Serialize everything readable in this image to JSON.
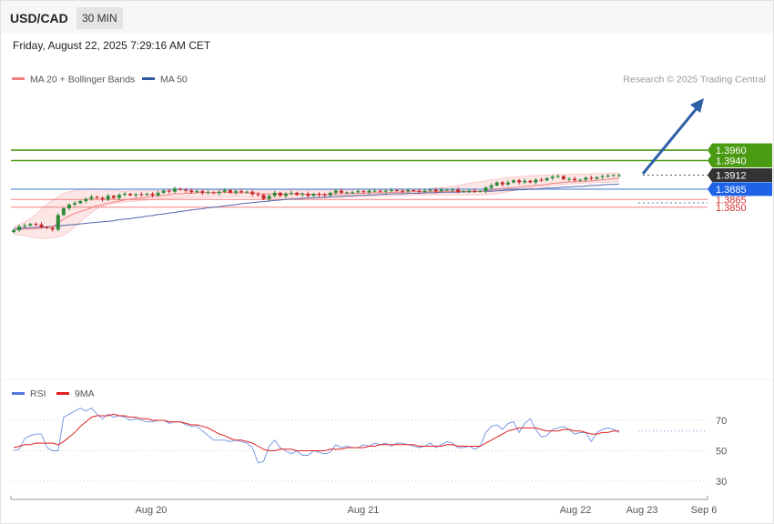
{
  "header": {
    "symbol": "USD/CAD",
    "timeframe": "30 MIN",
    "datetime": "Friday, August 22, 2025 7:29:16 AM CET"
  },
  "legend": {
    "ma20": "MA 20 + Bollinger Bands",
    "ma50": "MA 50",
    "credit": "Research © 2025 Trading Central"
  },
  "rsi_legend": {
    "rsi": "RSI",
    "ma": "9MA"
  },
  "colors": {
    "up": "#2e8b3a",
    "down": "#c62828",
    "ma20": "#f08080",
    "ma50": "#5566aa",
    "band": "#fde6e6",
    "target": "#4a9a12",
    "pivot": "#1f62e8",
    "support": "#f08080",
    "current": "#333333",
    "arrow": "#2f5fa6",
    "rsi": "#6f8fe0",
    "rsi_ma": "#e02020"
  },
  "chart_data": [
    {
      "type": "candlestick",
      "title": "USD/CAD 30 MIN",
      "x_ticks": [
        "Aug 20",
        "Aug 21",
        "Aug 22",
        "Aug 23",
        "Sep 6"
      ],
      "ylim": [
        1.38,
        1.398
      ],
      "levels": [
        {
          "value": 1.396,
          "label": "1.3960",
          "kind": "target"
        },
        {
          "value": 1.394,
          "label": "1.3940",
          "kind": "target"
        },
        {
          "value": 1.3912,
          "label": "1.3912",
          "kind": "current"
        },
        {
          "value": 1.3885,
          "label": "1.3885",
          "kind": "pivot"
        },
        {
          "value": 1.3865,
          "label": "1.3865",
          "kind": "support"
        },
        {
          "value": 1.385,
          "label": "1.3850",
          "kind": "support"
        }
      ],
      "close": [
        1.3806,
        1.3813,
        1.3815,
        1.3818,
        1.3817,
        1.3812,
        1.381,
        1.3807,
        1.3835,
        1.3848,
        1.3855,
        1.3858,
        1.3862,
        1.3866,
        1.387,
        1.3868,
        1.3865,
        1.3872,
        1.3868,
        1.3874,
        1.3876,
        1.3873,
        1.3875,
        1.3874,
        1.3876,
        1.3873,
        1.3878,
        1.3882,
        1.388,
        1.3886,
        1.3884,
        1.3882,
        1.3879,
        1.3881,
        1.3878,
        1.3879,
        1.3877,
        1.388,
        1.3883,
        1.3878,
        1.3881,
        1.3879,
        1.388,
        1.3875,
        1.3874,
        1.3866,
        1.3872,
        1.3878,
        1.3872,
        1.3876,
        1.3878,
        1.3874,
        1.3876,
        1.3872,
        1.3876,
        1.3874,
        1.3873,
        1.3878,
        1.3882,
        1.3878,
        1.3879,
        1.3879,
        1.3881,
        1.3879,
        1.3882,
        1.3882,
        1.388,
        1.3882,
        1.3883,
        1.3882,
        1.3881,
        1.3883,
        1.3882,
        1.388,
        1.3882,
        1.3884,
        1.3881,
        1.3884,
        1.3884,
        1.3884,
        1.388,
        1.3881,
        1.3882,
        1.3881,
        1.3881,
        1.3888,
        1.3892,
        1.3898,
        1.3894,
        1.3898,
        1.3902,
        1.3898,
        1.3901,
        1.3898,
        1.3903,
        1.3902,
        1.3906,
        1.3909,
        1.391,
        1.3904,
        1.3905,
        1.3902,
        1.3903,
        1.3907,
        1.3905,
        1.3908,
        1.391,
        1.3911,
        1.3912,
        1.3912
      ],
      "ma20": [
        1.3805,
        1.3807,
        1.3808,
        1.3808,
        1.3809,
        1.381,
        1.3811,
        1.3812,
        1.382,
        1.3827,
        1.3833,
        1.3838,
        1.3842,
        1.3845,
        1.3849,
        1.3853,
        1.3855,
        1.3858,
        1.386,
        1.3862,
        1.3864,
        1.3866,
        1.3867,
        1.3868,
        1.387,
        1.3871,
        1.3872,
        1.3873,
        1.3874,
        1.3876,
        1.3876,
        1.3877,
        1.3877,
        1.3878,
        1.3878,
        1.3878,
        1.3878,
        1.3879,
        1.3879,
        1.3878,
        1.3878,
        1.3878,
        1.3878,
        1.3877,
        1.3877,
        1.3876,
        1.3876,
        1.3876,
        1.3876,
        1.3876,
        1.3876,
        1.3876,
        1.3876,
        1.3875,
        1.3875,
        1.3875,
        1.3875,
        1.3875,
        1.3876,
        1.3876,
        1.3876,
        1.3877,
        1.3877,
        1.3877,
        1.3878,
        1.3878,
        1.3878,
        1.3878,
        1.3879,
        1.3879,
        1.3879,
        1.388,
        1.388,
        1.388,
        1.388,
        1.388,
        1.388,
        1.3881,
        1.3881,
        1.3881,
        1.3881,
        1.3881,
        1.3881,
        1.3881,
        1.3881,
        1.3882,
        1.3883,
        1.3885,
        1.3886,
        1.3887,
        1.3888,
        1.3889,
        1.389,
        1.3891,
        1.3892,
        1.3893,
        1.3894,
        1.3896,
        1.3897,
        1.3898,
        1.3899,
        1.3899,
        1.39,
        1.39,
        1.3901,
        1.3902,
        1.3903,
        1.3904,
        1.3905,
        1.3906
      ],
      "ma50": [
        1.3809,
        1.3809,
        1.381,
        1.3811,
        1.3811,
        1.3812,
        1.3812,
        1.3813,
        1.3814,
        1.3815,
        1.3816,
        1.3817,
        1.3818,
        1.3819,
        1.382,
        1.3821,
        1.3822,
        1.3823,
        1.3824,
        1.3826,
        1.3827,
        1.3828,
        1.383,
        1.3831,
        1.3833,
        1.3834,
        1.3836,
        1.3837,
        1.3839,
        1.384,
        1.3842,
        1.3843,
        1.3845,
        1.3846,
        1.3847,
        1.3849,
        1.385,
        1.3851,
        1.3853,
        1.3854,
        1.3855,
        1.3857,
        1.3858,
        1.3859,
        1.386,
        1.3861,
        1.3862,
        1.3863,
        1.3864,
        1.3865,
        1.3866,
        1.3866,
        1.3867,
        1.3868,
        1.3868,
        1.3869,
        1.3869,
        1.387,
        1.3871,
        1.3871,
        1.3872,
        1.3872,
        1.3873,
        1.3873,
        1.3874,
        1.3874,
        1.3875,
        1.3875,
        1.3876,
        1.3876,
        1.3876,
        1.3877,
        1.3877,
        1.3877,
        1.3878,
        1.3878,
        1.3878,
        1.3879,
        1.3879,
        1.3879,
        1.3879,
        1.388,
        1.388,
        1.388,
        1.3881,
        1.3881,
        1.3881,
        1.3882,
        1.3882,
        1.3883,
        1.3883,
        1.3884,
        1.3884,
        1.3885,
        1.3885,
        1.3886,
        1.3887,
        1.3887,
        1.3888,
        1.3889,
        1.3889,
        1.389,
        1.389,
        1.3891,
        1.3892,
        1.3892,
        1.3893,
        1.3894,
        1.3894,
        1.3895
      ],
      "band_upper": [
        1.3812,
        1.3817,
        1.3822,
        1.3828,
        1.3836,
        1.3846,
        1.3856,
        1.3864,
        1.387,
        1.3877,
        1.388,
        1.3882,
        1.3884,
        1.3885,
        1.3886,
        1.3886,
        1.3885,
        1.3884,
        1.3883,
        1.3882,
        1.3881,
        1.3882,
        1.3882,
        1.3882,
        1.3882,
        1.3882,
        1.3882,
        1.3882,
        1.3882,
        1.3883,
        1.3883,
        1.3883,
        1.3883,
        1.3883,
        1.3883,
        1.3883,
        1.3883,
        1.3883,
        1.3883,
        1.3883,
        1.3883,
        1.3884,
        1.3884,
        1.3884,
        1.3884,
        1.3884,
        1.3884,
        1.3884,
        1.3884,
        1.3883,
        1.3883,
        1.3883,
        1.3883,
        1.3883,
        1.3883,
        1.3883,
        1.3883,
        1.3883,
        1.3883,
        1.3883,
        1.3883,
        1.3884,
        1.3884,
        1.3884,
        1.3884,
        1.3884,
        1.3884,
        1.3884,
        1.3884,
        1.3884,
        1.3884,
        1.3884,
        1.3885,
        1.3885,
        1.3885,
        1.3886,
        1.3887,
        1.3888,
        1.3889,
        1.389,
        1.3892,
        1.3894,
        1.3896,
        1.3898,
        1.3899,
        1.3901,
        1.3903,
        1.3904,
        1.3906,
        1.3907,
        1.3908,
        1.3909,
        1.391,
        1.3911,
        1.3911,
        1.3912,
        1.3912,
        1.3913,
        1.3913,
        1.3913,
        1.3913,
        1.3914,
        1.3914,
        1.3914,
        1.3914,
        1.3915,
        1.3915,
        1.3915,
        1.3916,
        1.3916
      ],
      "band_lower": [
        1.3798,
        1.3797,
        1.3795,
        1.3793,
        1.3791,
        1.379,
        1.379,
        1.3791,
        1.3793,
        1.3797,
        1.3803,
        1.3812,
        1.3822,
        1.3832,
        1.384,
        1.3847,
        1.3852,
        1.3855,
        1.3857,
        1.3859,
        1.386,
        1.3861,
        1.3862,
        1.3863,
        1.3864,
        1.3865,
        1.3866,
        1.3867,
        1.3867,
        1.3868,
        1.3868,
        1.3869,
        1.3869,
        1.3869,
        1.3869,
        1.3869,
        1.387,
        1.387,
        1.387,
        1.387,
        1.387,
        1.387,
        1.387,
        1.3869,
        1.3869,
        1.3869,
        1.3868,
        1.3868,
        1.3868,
        1.3868,
        1.3868,
        1.3868,
        1.3868,
        1.3868,
        1.3868,
        1.3868,
        1.3868,
        1.3869,
        1.3869,
        1.3869,
        1.387,
        1.387,
        1.3871,
        1.3871,
        1.3871,
        1.3872,
        1.3872,
        1.3872,
        1.3872,
        1.3873,
        1.3873,
        1.3873,
        1.3874,
        1.3874,
        1.3874,
        1.3874,
        1.3874,
        1.3874,
        1.3874,
        1.3874,
        1.3874,
        1.3874,
        1.3874,
        1.3874,
        1.3874,
        1.3874,
        1.3875,
        1.3876,
        1.3878,
        1.388,
        1.3882,
        1.3884,
        1.3886,
        1.3887,
        1.3889,
        1.389,
        1.3891,
        1.3892,
        1.3893,
        1.3894,
        1.3895,
        1.3896,
        1.3896,
        1.3897,
        1.3897,
        1.3898,
        1.3898,
        1.3898,
        1.3899,
        1.3899
      ]
    },
    {
      "type": "line",
      "title": "RSI",
      "y_ticks": [
        "70",
        "50",
        "30"
      ],
      "ylim": [
        22,
        80
      ],
      "series": [
        {
          "name": "RSI",
          "values": [
            50,
            51,
            58,
            60,
            61,
            61,
            52,
            50,
            50,
            72,
            74,
            76,
            78,
            76,
            78,
            74,
            71,
            74,
            72,
            73,
            72,
            70,
            71,
            70,
            69,
            69,
            70,
            70,
            68,
            69,
            69,
            67,
            66,
            66,
            63,
            60,
            57,
            57,
            57,
            56,
            57,
            56,
            55,
            52,
            42,
            43,
            53,
            57,
            52,
            50,
            48,
            50,
            47,
            47,
            50,
            49,
            48,
            49,
            54,
            52,
            53,
            52,
            52,
            54,
            53,
            55,
            54,
            55,
            53,
            55,
            55,
            54,
            53,
            52,
            53,
            55,
            52,
            54,
            56,
            55,
            52,
            52,
            53,
            51,
            53,
            62,
            66,
            67,
            64,
            68,
            69,
            62,
            68,
            71,
            64,
            59,
            60,
            64,
            65,
            66,
            64,
            61,
            62,
            62,
            56,
            62,
            64,
            65,
            64,
            62
          ]
        },
        {
          "name": "9MA",
          "values": [
            52,
            53,
            54,
            54,
            55,
            55,
            55,
            55,
            54,
            56,
            59,
            62,
            66,
            69,
            72,
            73,
            73,
            73,
            74,
            73,
            73,
            72,
            72,
            71,
            71,
            70,
            70,
            70,
            69,
            69,
            69,
            68,
            67,
            67,
            66,
            65,
            63,
            61,
            60,
            58,
            57,
            57,
            56,
            55,
            53,
            51,
            50,
            50,
            51,
            51,
            51,
            50,
            50,
            50,
            50,
            50,
            50,
            51,
            51,
            51,
            52,
            52,
            52,
            52,
            53,
            53,
            54,
            54,
            54,
            54,
            54,
            54,
            54,
            53,
            53,
            53,
            53,
            53,
            54,
            54,
            53,
            53,
            53,
            53,
            53,
            55,
            57,
            59,
            61,
            63,
            64,
            65,
            65,
            65,
            65,
            64,
            63,
            63,
            63,
            64,
            64,
            63,
            63,
            62,
            61,
            61,
            62,
            62,
            63,
            63
          ]
        }
      ]
    }
  ]
}
